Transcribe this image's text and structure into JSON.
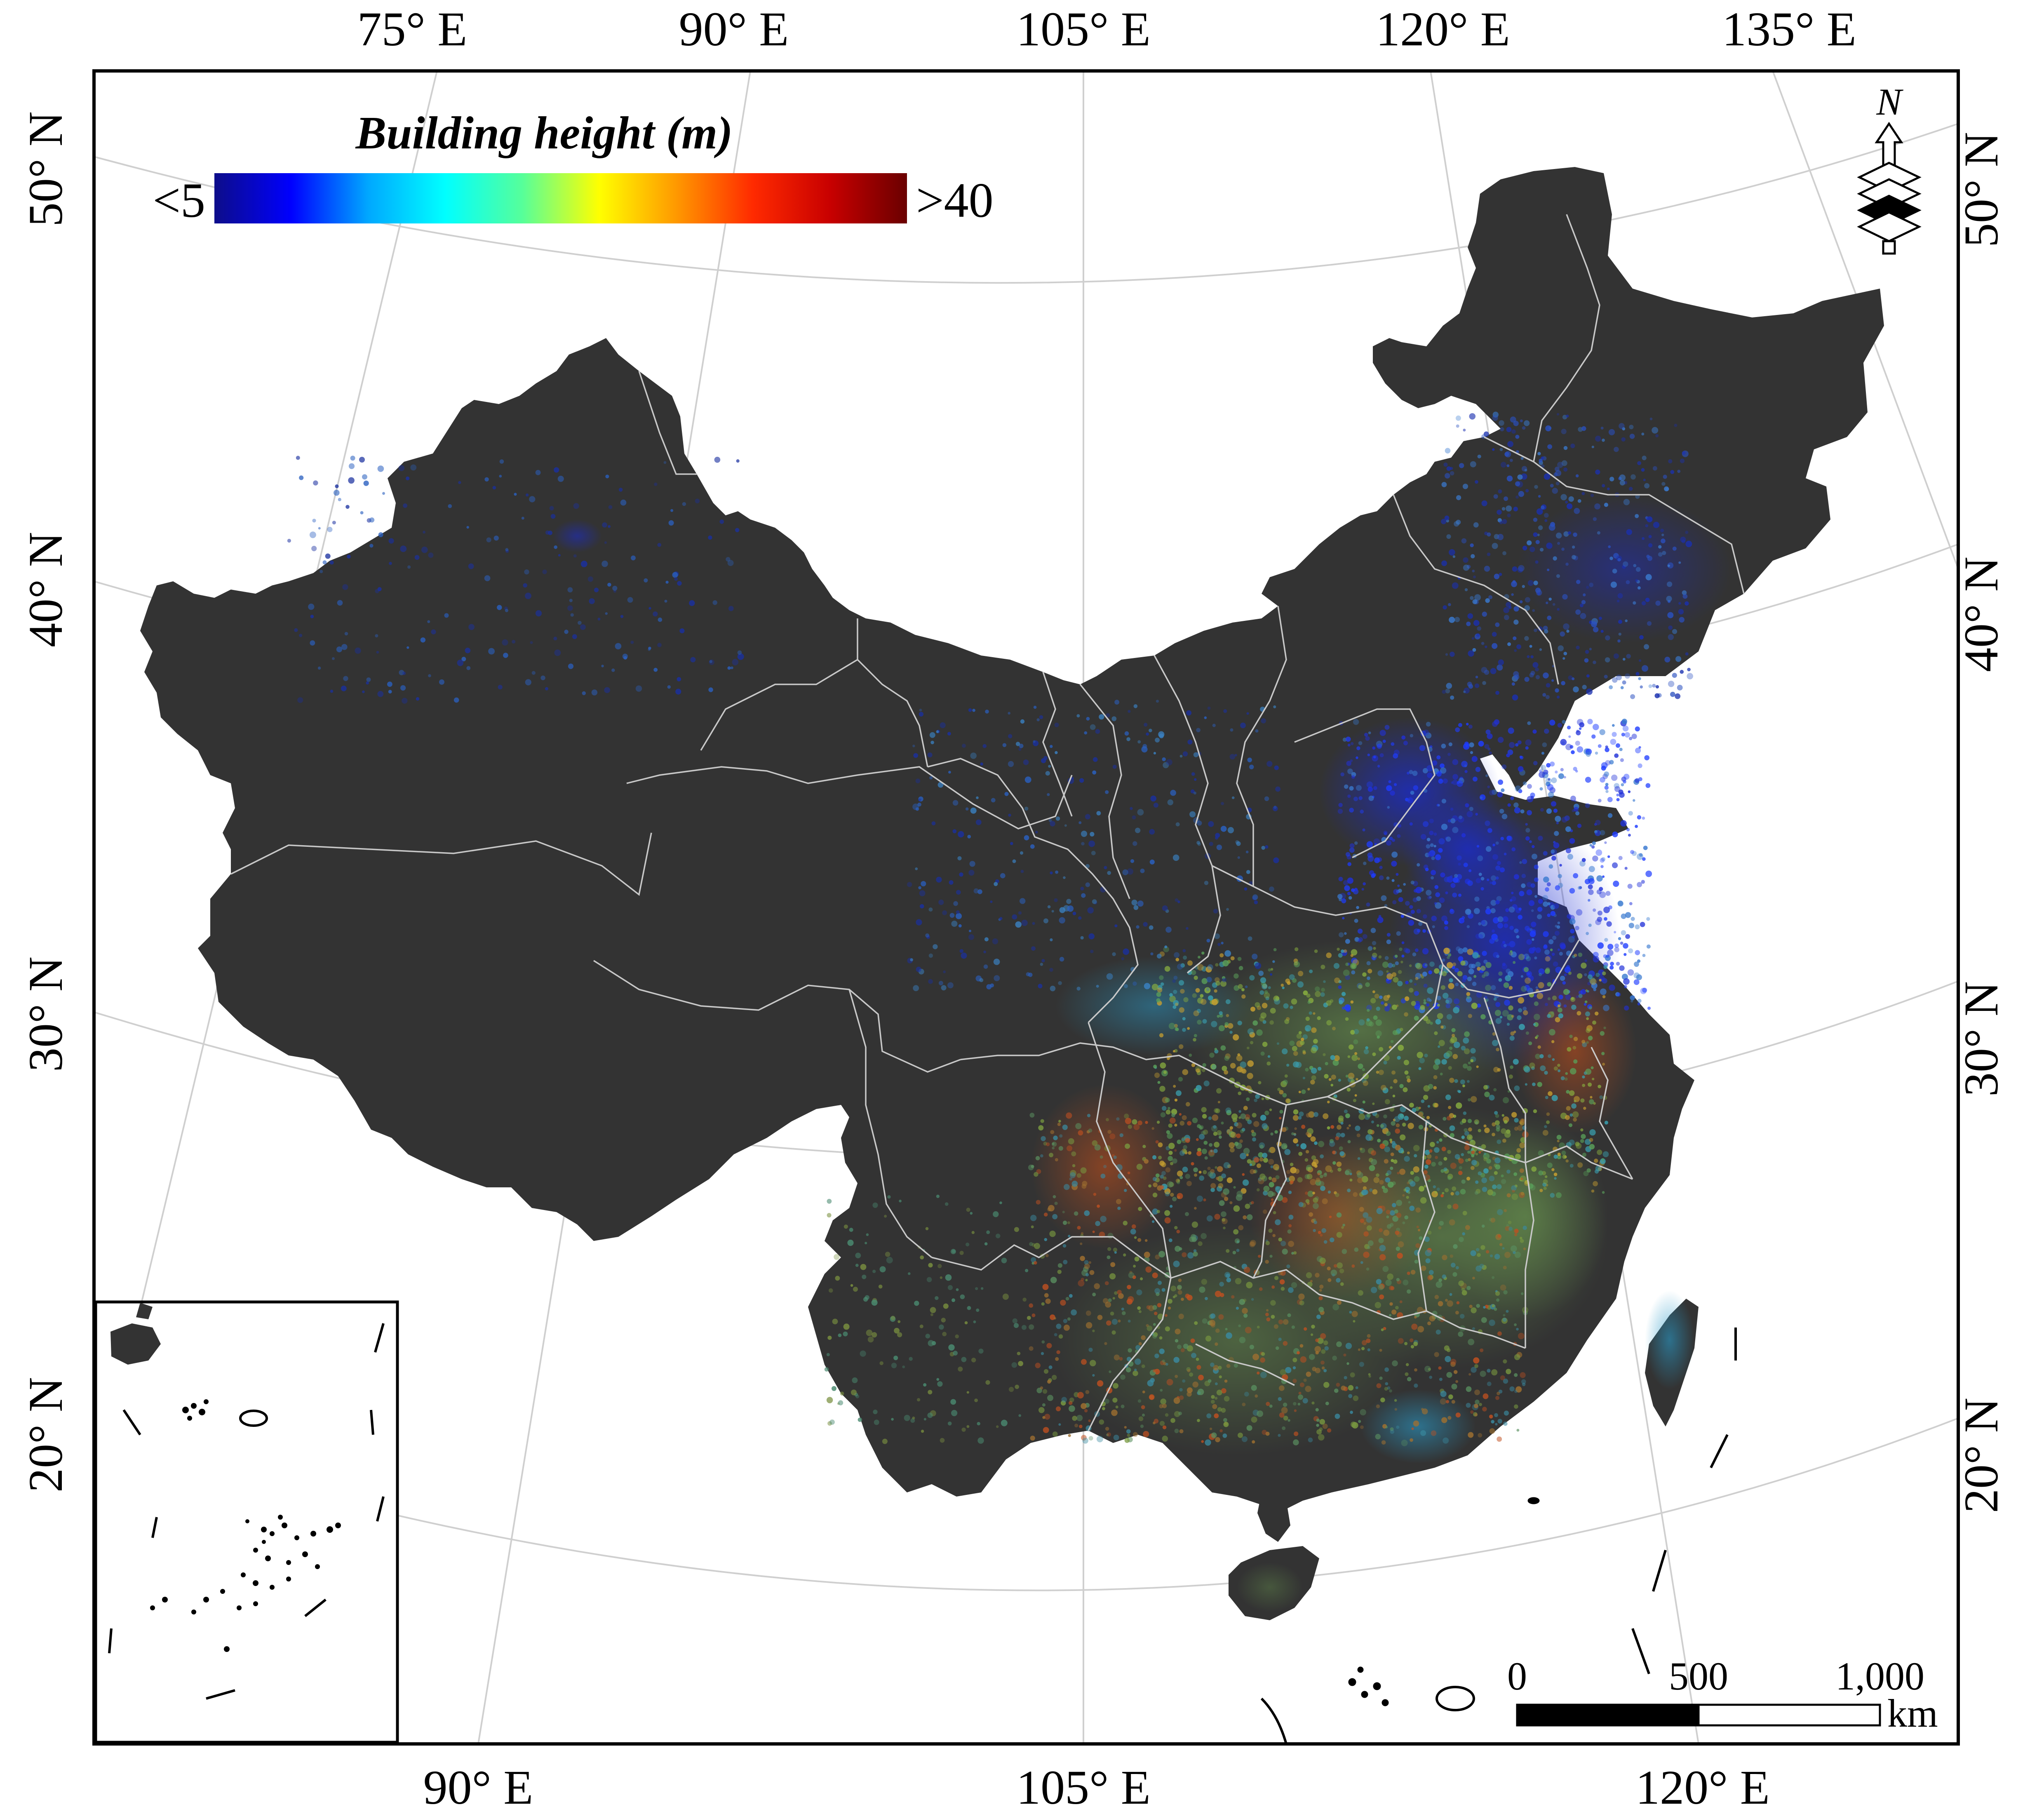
{
  "legend": {
    "title": "Building height (m)",
    "min_label": "<5",
    "max_label": ">40",
    "colors": [
      "#0d0d8a",
      "#0000ff",
      "#00a8ff",
      "#00ffff",
      "#56ff9a",
      "#ffff00",
      "#ff9900",
      "#ff2a00",
      "#c80000",
      "#6a0000"
    ]
  },
  "graticule": {
    "top_longitudes": [
      "75° E",
      "90° E",
      "105° E",
      "120° E",
      "135° E"
    ],
    "bottom_longitudes": [
      "90° E",
      "105° E",
      "120° E"
    ],
    "left_latitudes": [
      "50° N",
      "40° N",
      "30° N",
      "20° N"
    ],
    "right_latitudes": [
      "50° N",
      "40° N",
      "30° N",
      "20° N"
    ]
  },
  "north_arrow": {
    "label": "N"
  },
  "scale_bar": {
    "ticks": [
      "0",
      "500",
      "1,000"
    ],
    "unit": "km"
  },
  "colors": {
    "land": "#333333",
    "boundary": "#c8c8c8",
    "graticule": "#cfcfcf",
    "frame": "#000000"
  }
}
